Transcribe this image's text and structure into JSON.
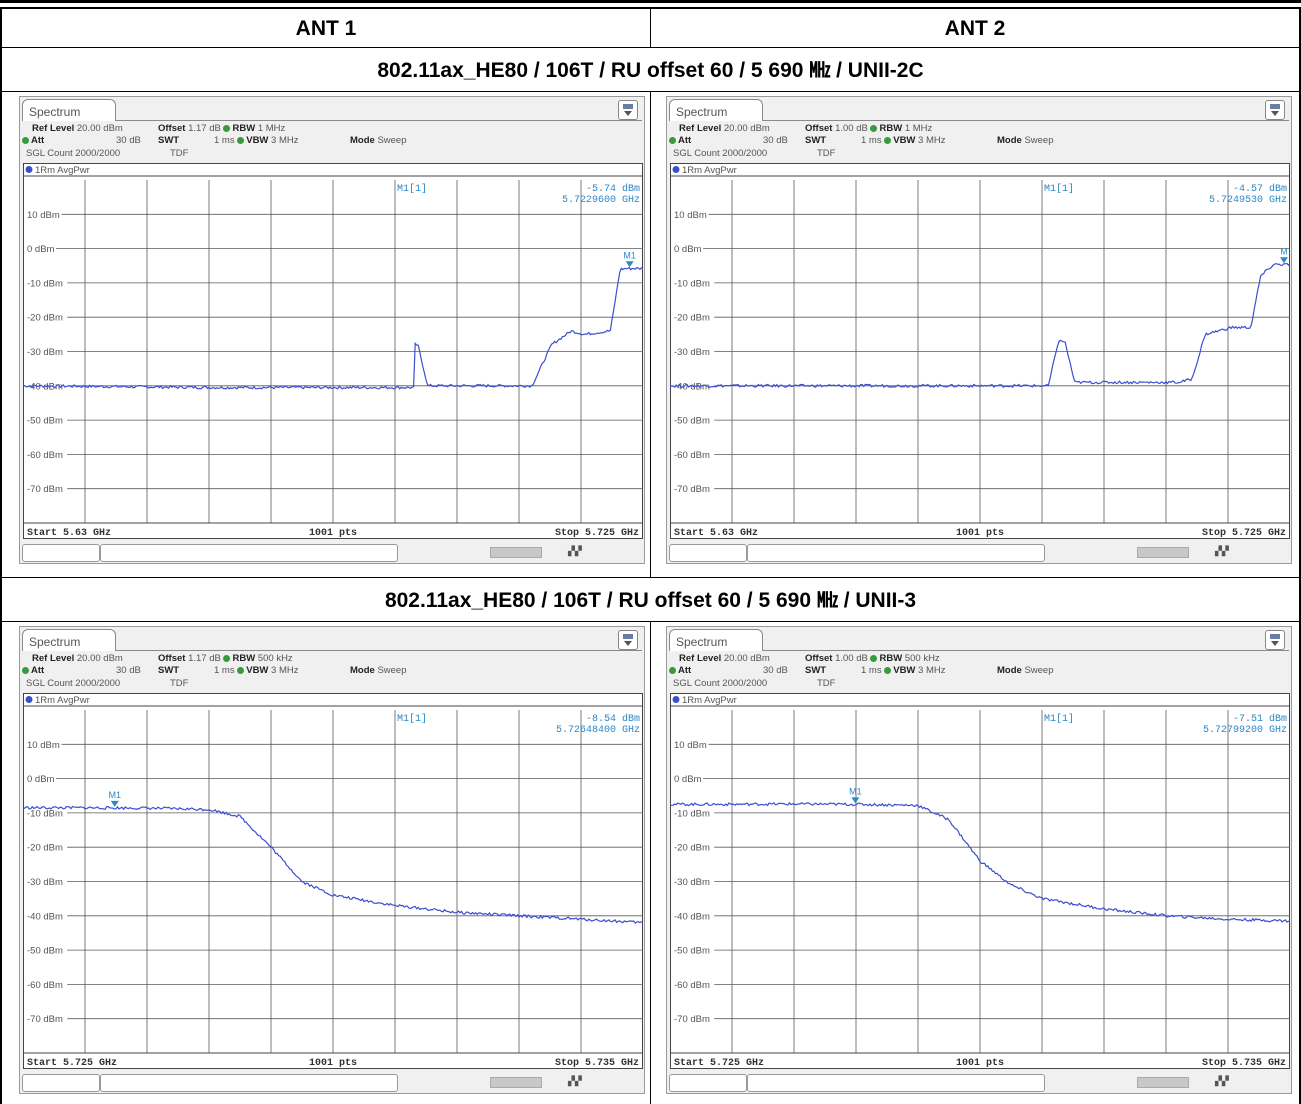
{
  "table": {
    "col_headers": [
      "ANT 1",
      "ANT 2"
    ],
    "rows": [
      {
        "caption": "802.11ax_HE80 / 106T / RU offset 60 / 5 690 ㎒ / UNII-2C"
      },
      {
        "caption": "802.11ax_HE80 / 106T / RU offset 60 / 5 690 ㎒ / UNII-3"
      }
    ]
  },
  "colors": {
    "trace": "#3a4fd0",
    "marker": "#2a88c8",
    "grid": "#5a5a5a",
    "readout": "#2a88c8"
  },
  "chart_data": [
    {
      "type": "line",
      "tab": "Spectrum",
      "ref_level_label": "Ref Level",
      "ref_level": "20.00 dBm",
      "offset_label": "Offset",
      "offset": "1.17 dB",
      "rbw_label": "RBW",
      "rbw": "1 MHz",
      "att_label": "Att",
      "att": "30 dB",
      "swt_label": "SWT",
      "swt": "1 ms",
      "vbw_label": "VBW",
      "vbw": "3 MHz",
      "mode_label": "Mode",
      "mode": "Sweep",
      "sgl_count": "SGL Count 2000/2000",
      "tdf": "TDF",
      "trace_label": "1Rm AvgPwr",
      "marker_name": "M1[1]",
      "marker_level": "-5.74 dBm",
      "marker_freq": "5.7229600 GHz",
      "marker_tag": "M1",
      "marker_x": 5.72296,
      "marker_y": -5.74,
      "start": "Start 5.63 GHz",
      "points": "1001 pts",
      "stop": "Stop 5.725 GHz",
      "xlim": [
        5.63,
        5.725
      ],
      "ylim": [
        -80,
        20
      ],
      "yticks": [
        "10 dBm",
        "0 dBm",
        "-10 dBm",
        "-20 dBm",
        "-30 dBm",
        "-40 dBm",
        "-50 dBm",
        "-60 dBm",
        "-70 dBm"
      ],
      "x": [
        5.63,
        5.66,
        5.69,
        5.688,
        5.6895,
        5.6905,
        5.692,
        5.7,
        5.708,
        5.711,
        5.714,
        5.716,
        5.72,
        5.7215,
        5.7225,
        5.725
      ],
      "y": [
        -40,
        -40.5,
        -40.5,
        -40,
        -28,
        -28,
        -40,
        -40,
        -40,
        -28,
        -24,
        -25,
        -24,
        -6,
        -5.8,
        -5.8
      ]
    },
    {
      "type": "line",
      "tab": "Spectrum",
      "ref_level_label": "Ref Level",
      "ref_level": "20.00 dBm",
      "offset_label": "Offset",
      "offset": "1.00 dB",
      "rbw_label": "RBW",
      "rbw": "1 MHz",
      "att_label": "Att",
      "att": "30 dB",
      "swt_label": "SWT",
      "swt": "1 ms",
      "vbw_label": "VBW",
      "vbw": "3 MHz",
      "mode_label": "Mode",
      "mode": "Sweep",
      "sgl_count": "SGL Count 2000/2000",
      "tdf": "TDF",
      "trace_label": "1Rm AvgPwr",
      "marker_name": "M1[1]",
      "marker_level": "-4.57 dBm",
      "marker_freq": "5.7249530 GHz",
      "marker_tag": "M",
      "marker_x": 5.72495,
      "marker_y": -4.57,
      "start": "Start 5.63 GHz",
      "points": "1001 pts",
      "stop": "Stop 5.725 GHz",
      "xlim": [
        5.63,
        5.725
      ],
      "ylim": [
        -80,
        20
      ],
      "yticks": [
        "10 dBm",
        "0 dBm",
        "-10 dBm",
        "-20 dBm",
        "-30 dBm",
        "-40 dBm",
        "-50 dBm",
        "-60 dBm",
        "-70 dBm"
      ],
      "x": [
        5.63,
        5.66,
        5.688,
        5.6895,
        5.6905,
        5.692,
        5.7,
        5.708,
        5.71,
        5.712,
        5.716,
        5.719,
        5.7205,
        5.7225,
        5.725
      ],
      "y": [
        -40,
        -40,
        -40,
        -27,
        -27,
        -39,
        -39,
        -39,
        -38,
        -25,
        -23,
        -23,
        -8,
        -4.6,
        -4.6
      ]
    },
    {
      "type": "line",
      "tab": "Spectrum",
      "ref_level_label": "Ref Level",
      "ref_level": "20.00 dBm",
      "offset_label": "Offset",
      "offset": "1.17 dB",
      "rbw_label": "RBW",
      "rbw": "500 kHz",
      "att_label": "Att",
      "att": "30 dB",
      "swt_label": "SWT",
      "swt": "1 ms",
      "vbw_label": "VBW",
      "vbw": "3 MHz",
      "mode_label": "Mode",
      "mode": "Sweep",
      "sgl_count": "SGL Count 2000/2000",
      "tdf": "TDF",
      "trace_label": "1Rm AvgPwr",
      "marker_name": "M1[1]",
      "marker_level": "-8.54 dBm",
      "marker_freq": "5.72648400 GHz",
      "marker_tag": "M1",
      "marker_x": 5.72648,
      "marker_y": -8.54,
      "start": "Start 5.725 GHz",
      "points": "1001 pts",
      "stop": "Stop 5.735 GHz",
      "xlim": [
        5.725,
        5.735
      ],
      "ylim": [
        -80,
        20
      ],
      "yticks": [
        "10 dBm",
        "0 dBm",
        "-10 dBm",
        "-20 dBm",
        "-30 dBm",
        "-40 dBm",
        "-50 dBm",
        "-60 dBm",
        "-70 dBm"
      ],
      "x": [
        5.725,
        5.726,
        5.727,
        5.728,
        5.7285,
        5.729,
        5.7295,
        5.73,
        5.731,
        5.732,
        5.733,
        5.734,
        5.735
      ],
      "y": [
        -8.5,
        -8.5,
        -8.6,
        -9,
        -11,
        -20,
        -30,
        -34,
        -37,
        -39,
        -40,
        -41,
        -42
      ]
    },
    {
      "type": "line",
      "tab": "Spectrum",
      "ref_level_label": "Ref Level",
      "ref_level": "20.00 dBm",
      "offset_label": "Offset",
      "offset": "1.00 dB",
      "rbw_label": "RBW",
      "rbw": "500 kHz",
      "att_label": "Att",
      "att": "30 dB",
      "swt_label": "SWT",
      "swt": "1 ms",
      "vbw_label": "VBW",
      "vbw": "3 MHz",
      "mode_label": "Mode",
      "mode": "Sweep",
      "sgl_count": "SGL Count 2000/2000",
      "tdf": "TDF",
      "trace_label": "1Rm AvgPwr",
      "marker_name": "M1[1]",
      "marker_level": "-7.51 dBm",
      "marker_freq": "5.72799200 GHz",
      "marker_tag": "M1",
      "marker_x": 5.72799,
      "marker_y": -7.51,
      "start": "Start 5.725 GHz",
      "points": "1001 pts",
      "stop": "Stop 5.735 GHz",
      "xlim": [
        5.725,
        5.735
      ],
      "ylim": [
        -80,
        20
      ],
      "yticks": [
        "10 dBm",
        "0 dBm",
        "-10 dBm",
        "-20 dBm",
        "-30 dBm",
        "-40 dBm",
        "-50 dBm",
        "-60 dBm",
        "-70 dBm"
      ],
      "x": [
        5.725,
        5.726,
        5.727,
        5.728,
        5.729,
        5.7295,
        5.73,
        5.7305,
        5.731,
        5.732,
        5.733,
        5.734,
        5.735
      ],
      "y": [
        -7.5,
        -7.5,
        -7.4,
        -7.5,
        -7.8,
        -12,
        -24,
        -31,
        -35,
        -38,
        -40,
        -41,
        -41.5
      ]
    }
  ]
}
